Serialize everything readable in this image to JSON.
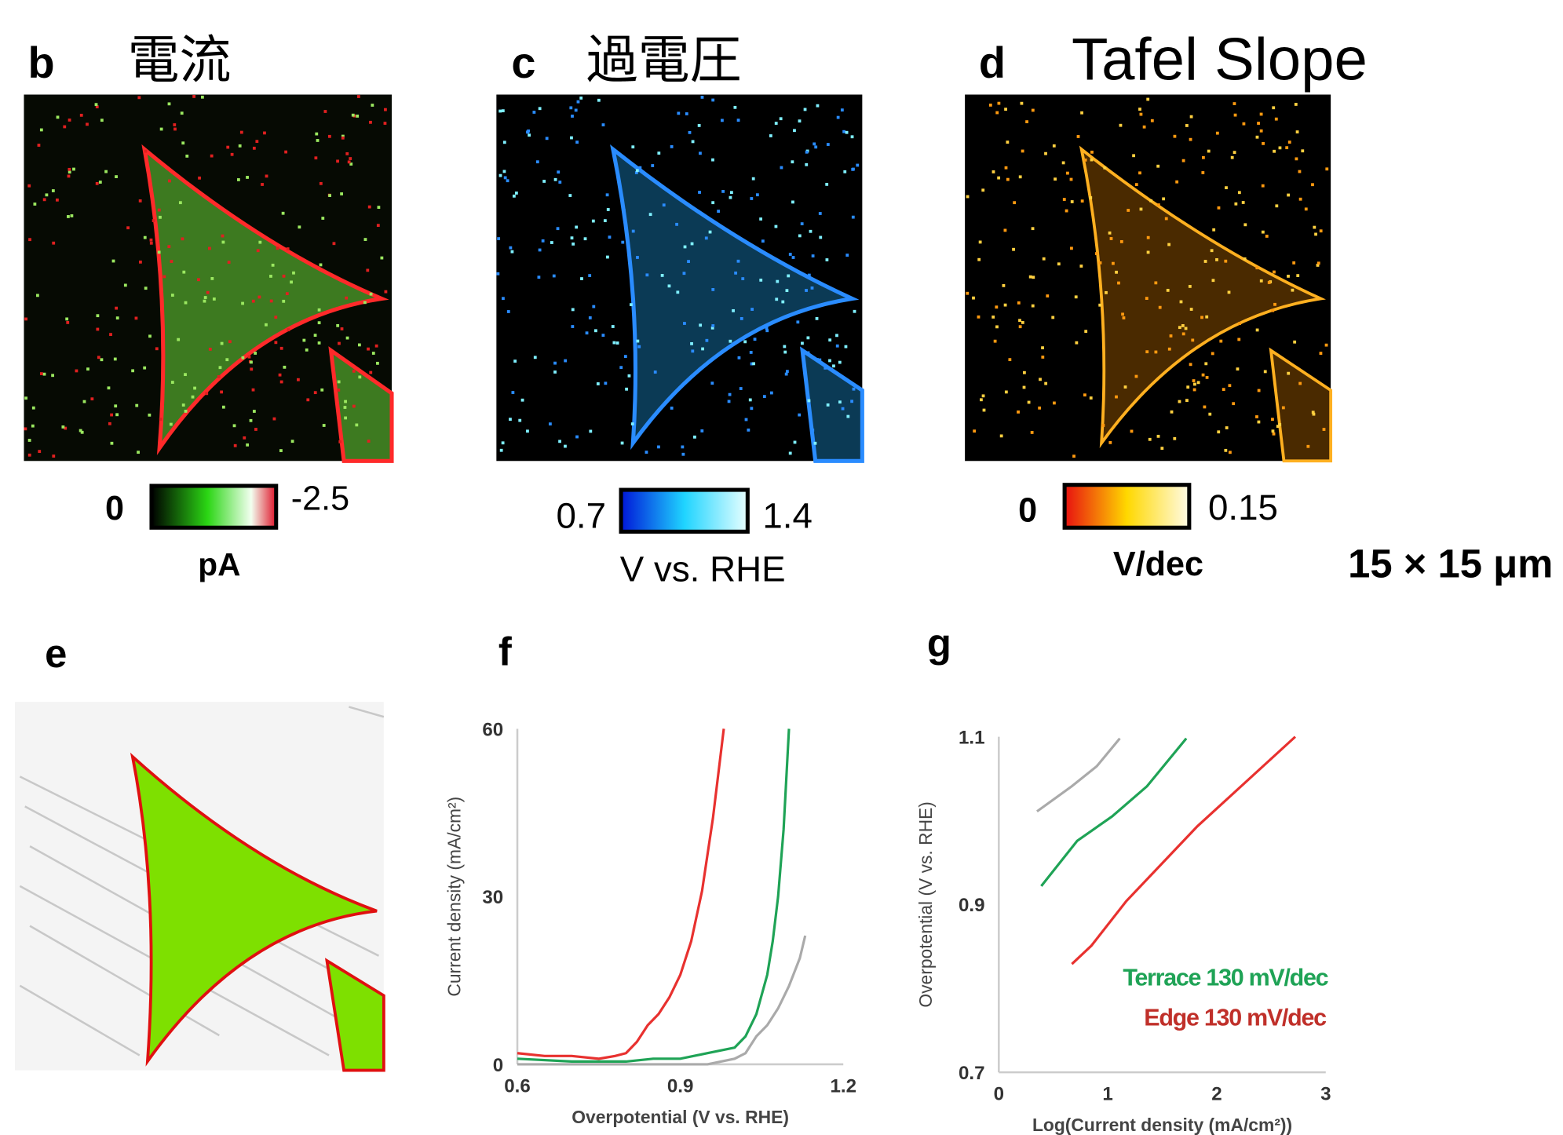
{
  "panels": [
    {
      "letter": "b",
      "title": "電流",
      "colorbar": {
        "min": 0,
        "max": -2.5,
        "unit": "pA"
      }
    },
    {
      "letter": "c",
      "title": "過電圧",
      "colorbar": {
        "min": 0.7,
        "max": 1.4,
        "unit": "V vs. RHE"
      }
    },
    {
      "letter": "d",
      "title": "Tafel Slope",
      "colorbar": {
        "min": 0,
        "max": 0.15,
        "unit": "V/dec"
      }
    }
  ],
  "scale": "15 × 15 μm",
  "panel_e": {
    "letter": "e"
  },
  "chart_data": [
    {
      "type": "line",
      "letter": "f",
      "xlabel": "Overpotential (V vs. RHE)",
      "ylabel": "Current density (mA/cm²)",
      "xlim": [
        0.6,
        1.2
      ],
      "xticks": [
        0.6,
        0.9,
        1.2
      ],
      "ylim": [
        0,
        60
      ],
      "yticks": [
        0,
        30,
        60
      ],
      "series": [
        {
          "color": "#e8312f",
          "x": [
            0.6,
            0.65,
            0.7,
            0.75,
            0.78,
            0.8,
            0.82,
            0.84,
            0.86,
            0.88,
            0.9,
            0.92,
            0.94,
            0.96,
            0.98
          ],
          "values": [
            2,
            1.5,
            1.5,
            1,
            1.5,
            2,
            4,
            7,
            9,
            12,
            16,
            22,
            31,
            44,
            60
          ]
        },
        {
          "color": "#1fa356",
          "x": [
            0.6,
            0.7,
            0.8,
            0.85,
            0.9,
            0.95,
            1.0,
            1.02,
            1.04,
            1.06,
            1.07,
            1.08,
            1.09,
            1.1
          ],
          "values": [
            1,
            0.5,
            0.5,
            1,
            1,
            2,
            3,
            5,
            9,
            16,
            22,
            30,
            42,
            60
          ]
        },
        {
          "color": "#aaaaaa",
          "x": [
            0.6,
            0.8,
            0.9,
            0.95,
            1.0,
            1.02,
            1.04,
            1.06,
            1.08,
            1.1,
            1.12,
            1.13
          ],
          "values": [
            0,
            0,
            0,
            0,
            1,
            2,
            5,
            7,
            10,
            14,
            19,
            23
          ]
        }
      ]
    },
    {
      "type": "line",
      "letter": "g",
      "xlabel": "Log(Current density (mA/cm²))",
      "ylabel": "Overpotential (V vs. RHE)",
      "xlim": [
        0,
        3
      ],
      "xticks": [
        0,
        1,
        2,
        3
      ],
      "ylim": [
        0.7,
        1.1
      ],
      "yticks": [
        0.7,
        0.9,
        1.1
      ],
      "series": [
        {
          "color": "#aaaaaa",
          "x": [
            0.35,
            0.67,
            0.9,
            1.11
          ],
          "values": [
            1.011,
            1.041,
            1.065,
            1.098
          ]
        },
        {
          "color": "#1fa356",
          "x": [
            0.39,
            0.72,
            1.04,
            1.36,
            1.72
          ],
          "values": [
            0.922,
            0.976,
            1.005,
            1.041,
            1.098
          ]
        },
        {
          "color": "#e8312f",
          "x": [
            0.67,
            0.85,
            1.17,
            1.82,
            2.72
          ],
          "values": [
            0.829,
            0.851,
            0.904,
            0.993,
            1.1
          ]
        }
      ],
      "annotations": [
        {
          "text": "Terrace 130 mV/dec",
          "color": "#1fa356"
        },
        {
          "text": "Edge 130 mV/dec",
          "color": "#c0302a"
        }
      ]
    }
  ]
}
